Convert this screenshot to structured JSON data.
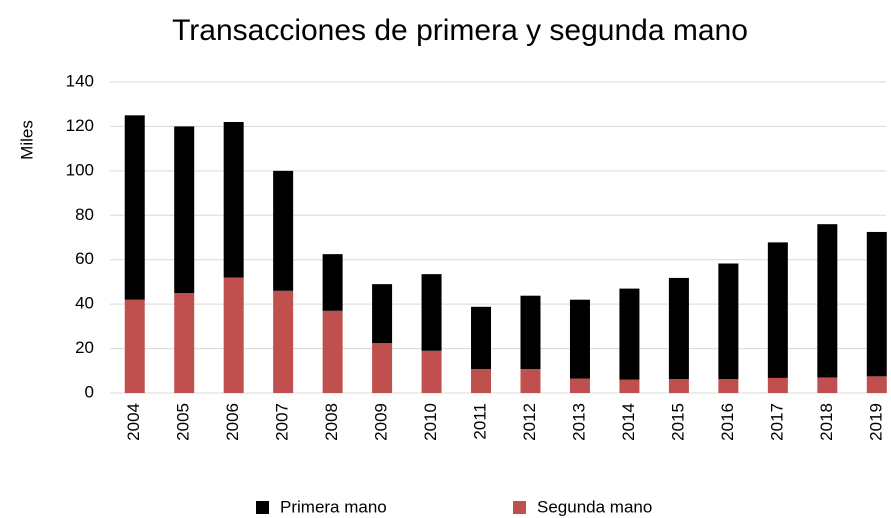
{
  "chart_data": {
    "type": "stacked_bar",
    "title": "Transacciones de primera y segunda mano",
    "y_label": "Miles",
    "categories": [
      "2004",
      "2005",
      "2006",
      "2007",
      "2008",
      "2009",
      "2010",
      "2011",
      "2012",
      "2013",
      "2014",
      "2015",
      "2016",
      "2017",
      "2018",
      "2019"
    ],
    "series": [
      {
        "name": "Segunda mano",
        "color": "#c0504d",
        "values": [
          42,
          45,
          52,
          46,
          37,
          22.5,
          19,
          10.8,
          10.8,
          6.5,
          6,
          6.3,
          6.3,
          6.8,
          7,
          7.5
        ]
      },
      {
        "name": "Primera mano",
        "color": "#000000",
        "values": [
          83,
          75,
          70,
          54,
          25.5,
          26.5,
          34.5,
          28,
          33,
          35.5,
          41,
          45.5,
          52,
          61,
          69,
          65
        ]
      }
    ],
    "legend_order": [
      1,
      0
    ],
    "ylim": [
      0,
      140
    ],
    "yticks": [
      0,
      20,
      40,
      60,
      80,
      100,
      120,
      140
    ],
    "grid": true
  }
}
